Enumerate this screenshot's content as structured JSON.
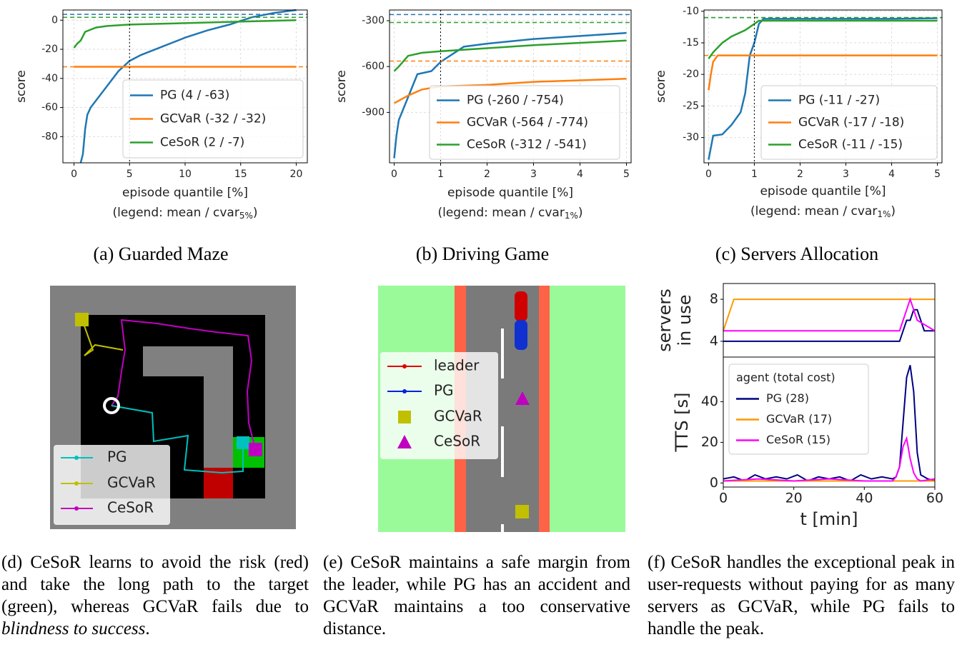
{
  "chart_data": [
    {
      "type": "line",
      "ylabel": "score",
      "xlabel": "episode quantile [%]",
      "note": [
        "(legend: mean / cvar",
        "5%",
        ")"
      ],
      "xlim": [
        -1,
        21
      ],
      "xticks": [
        0,
        5,
        10,
        15,
        20
      ],
      "ylim": [
        -98,
        7
      ],
      "yticks": [
        0,
        -20,
        -40,
        -60,
        -80
      ],
      "grid": true,
      "vline": 5,
      "legend": "lower right",
      "series": [
        {
          "name": "PG (4 / -63)",
          "color": "#1f77b4",
          "mean": 4,
          "x": [
            0.6,
            0.8,
            1,
            1.2,
            1.5,
            2,
            3,
            4,
            5,
            6,
            8,
            10,
            12,
            14,
            16,
            18,
            20
          ],
          "values": [
            -98,
            -92,
            -75,
            -65,
            -60,
            -55,
            -45,
            -35,
            -28,
            -24,
            -18,
            -12,
            -7,
            -3,
            2,
            5,
            7
          ]
        },
        {
          "name": "GCVaR (-32 / -32)",
          "color": "#ff7f0e",
          "mean": -32,
          "x": [
            0,
            20
          ],
          "values": [
            -32,
            -32
          ]
        },
        {
          "name": "CeSoR (2 / -7)",
          "color": "#2ca02c",
          "mean": 2,
          "x": [
            0,
            0.3,
            0.6,
            1,
            2,
            3,
            5,
            10,
            15,
            20
          ],
          "values": [
            -19,
            -16,
            -14,
            -8,
            -5,
            -4,
            -3,
            -2,
            -1,
            0
          ]
        }
      ]
    },
    {
      "type": "line",
      "ylabel": "score",
      "xlabel": "episode quantile [%]",
      "note": [
        "(legend: mean / cvar",
        "1%",
        ")"
      ],
      "xlim": [
        -0.1,
        5.1
      ],
      "xticks": [
        0,
        1,
        2,
        3,
        4,
        5
      ],
      "ylim": [
        -1230,
        -230
      ],
      "yticks": [
        -300,
        -600,
        -900
      ],
      "grid": true,
      "vline": 1,
      "legend": "lower right",
      "series": [
        {
          "name": "PG (-260 / -754)",
          "color": "#1f77b4",
          "mean": -260,
          "x": [
            0,
            0.05,
            0.1,
            0.3,
            0.5,
            0.8,
            1,
            1.5,
            2,
            3,
            4,
            5
          ],
          "values": [
            -1200,
            -1050,
            -950,
            -800,
            -650,
            -630,
            -570,
            -470,
            -450,
            -420,
            -400,
            -380
          ]
        },
        {
          "name": "GCVaR (-564 / -774)",
          "color": "#ff7f0e",
          "mean": -564,
          "x": [
            0,
            0.3,
            0.6,
            1,
            2,
            3,
            4,
            5
          ],
          "values": [
            -840,
            -790,
            -750,
            -730,
            -720,
            -700,
            -690,
            -680
          ]
        },
        {
          "name": "CeSoR (-312 / -541)",
          "color": "#2ca02c",
          "mean": -312,
          "x": [
            0,
            0.1,
            0.3,
            0.6,
            1,
            2,
            3,
            4,
            5
          ],
          "values": [
            -630,
            -600,
            -530,
            -510,
            -500,
            -480,
            -460,
            -445,
            -430
          ]
        }
      ]
    },
    {
      "type": "line",
      "ylabel": "score",
      "xlabel": "episode quantile [%]",
      "note": [
        "(legend: mean / cvar",
        "1%",
        ")"
      ],
      "xlim": [
        -0.1,
        5.1
      ],
      "xticks": [
        0,
        1,
        2,
        3,
        4,
        5
      ],
      "ylim": [
        -34,
        -9.8
      ],
      "yticks": [
        -10,
        -15,
        -20,
        -25,
        -30
      ],
      "grid": true,
      "vline": 1,
      "legend": "lower right",
      "series": [
        {
          "name": "PG (-11 / -27)",
          "color": "#1f77b4",
          "mean": -11,
          "x": [
            0,
            0.1,
            0.3,
            0.5,
            0.7,
            0.8,
            0.9,
            1,
            1.1,
            1.2,
            2,
            3,
            4,
            5
          ],
          "values": [
            -33.5,
            -29.7,
            -29.5,
            -28,
            -26,
            -23,
            -17,
            -15,
            -12,
            -11.2,
            -11.2,
            -11.2,
            -11.2,
            -11.1
          ]
        },
        {
          "name": "GCVaR (-17 / -18)",
          "color": "#ff7f0e",
          "mean": -17,
          "x": [
            0,
            0.05,
            0.1,
            0.2,
            5
          ],
          "values": [
            -22.5,
            -20,
            -18,
            -17,
            -17
          ]
        },
        {
          "name": "CeSoR (-11 / -15)",
          "color": "#2ca02c",
          "mean": -11,
          "x": [
            0,
            0.1,
            0.3,
            0.5,
            0.8,
            1,
            1.1,
            1.2,
            2,
            5
          ],
          "values": [
            -17.5,
            -16.5,
            -15,
            -14,
            -13,
            -12,
            -11.5,
            -11.5,
            -11.5,
            -11.5
          ]
        }
      ]
    },
    {
      "type": "line",
      "ylabel": [
        "servers",
        "in use"
      ],
      "xlim": [
        0,
        60
      ],
      "ylim": [
        2.5,
        9.5
      ],
      "yticks": [
        4,
        8
      ],
      "grid": false,
      "series": [
        {
          "color": "#000080",
          "x": [
            0,
            50,
            51,
            52,
            53,
            54,
            55,
            56,
            57,
            60
          ],
          "values": [
            4,
            4,
            5,
            6,
            6,
            7,
            7,
            6,
            5,
            5
          ]
        },
        {
          "color": "#ff9900",
          "x": [
            0,
            1,
            2,
            3,
            60
          ],
          "values": [
            5,
            6,
            7,
            8,
            8
          ]
        },
        {
          "color": "#ff00ff",
          "x": [
            0,
            50,
            51,
            52,
            53,
            54,
            55,
            60
          ],
          "values": [
            5,
            5,
            6,
            7,
            8,
            7,
            6,
            5
          ]
        }
      ]
    },
    {
      "type": "line",
      "ylabel": "TTS [s]",
      "xlabel": "t [min]",
      "legend_title": "agent (total cost)",
      "legend": "upper left",
      "xlim": [
        0,
        60
      ],
      "xticks": [
        0,
        20,
        40,
        60
      ],
      "ylim": [
        -2,
        62
      ],
      "yticks": [
        0,
        20,
        40
      ],
      "grid": false,
      "series": [
        {
          "name": "PG (28)",
          "color": "#000080",
          "x": [
            0,
            3,
            6,
            9,
            12,
            15,
            18,
            21,
            24,
            27,
            30,
            33,
            36,
            39,
            42,
            45,
            48,
            49,
            50,
            51,
            52,
            53,
            54,
            55,
            56,
            58,
            60
          ],
          "values": [
            2,
            3,
            1,
            4,
            2,
            3,
            2,
            4,
            1,
            3,
            2,
            3,
            1,
            4,
            2,
            3,
            2,
            3,
            8,
            30,
            52,
            58,
            45,
            15,
            4,
            2,
            1
          ]
        },
        {
          "name": "GCVaR (17)",
          "color": "#ff9900",
          "x": [
            0,
            60
          ],
          "values": [
            1,
            1
          ]
        },
        {
          "name": "CeSoR (15)",
          "color": "#ff00ff",
          "x": [
            0,
            10,
            20,
            30,
            40,
            48,
            49,
            50,
            51,
            52,
            53,
            54,
            55,
            56,
            60
          ],
          "values": [
            1,
            2,
            1,
            2,
            1,
            1,
            3,
            8,
            18,
            22,
            12,
            5,
            2,
            1,
            2
          ]
        }
      ]
    }
  ],
  "diagrams": {
    "maze": {
      "legend": [
        "PG",
        "GCVaR",
        "CeSoR"
      ]
    },
    "driving": {
      "legend": [
        "leader",
        "PG",
        "GCVaR",
        "CeSoR"
      ]
    }
  },
  "captions": {
    "top": [
      "(a) Guarded Maze",
      "(b) Driving Game",
      "(c) Servers Allocation"
    ],
    "bottom": [
      {
        "text": "(d) CeSoR learns to avoid the risk (red) and take the long path to the target (green), whereas GCVaR fails due to ",
        "em": "blindness to success",
        "end": "."
      },
      {
        "text": "(e) CeSoR maintains a safe margin from the leader, while PG has an accident and GCVaR maintains a too conservative distance."
      },
      {
        "text": "(f) CeSoR handles the exceptional peak in user-requests without paying for as many servers as GCVaR, while PG fails to handle the peak."
      }
    ]
  }
}
